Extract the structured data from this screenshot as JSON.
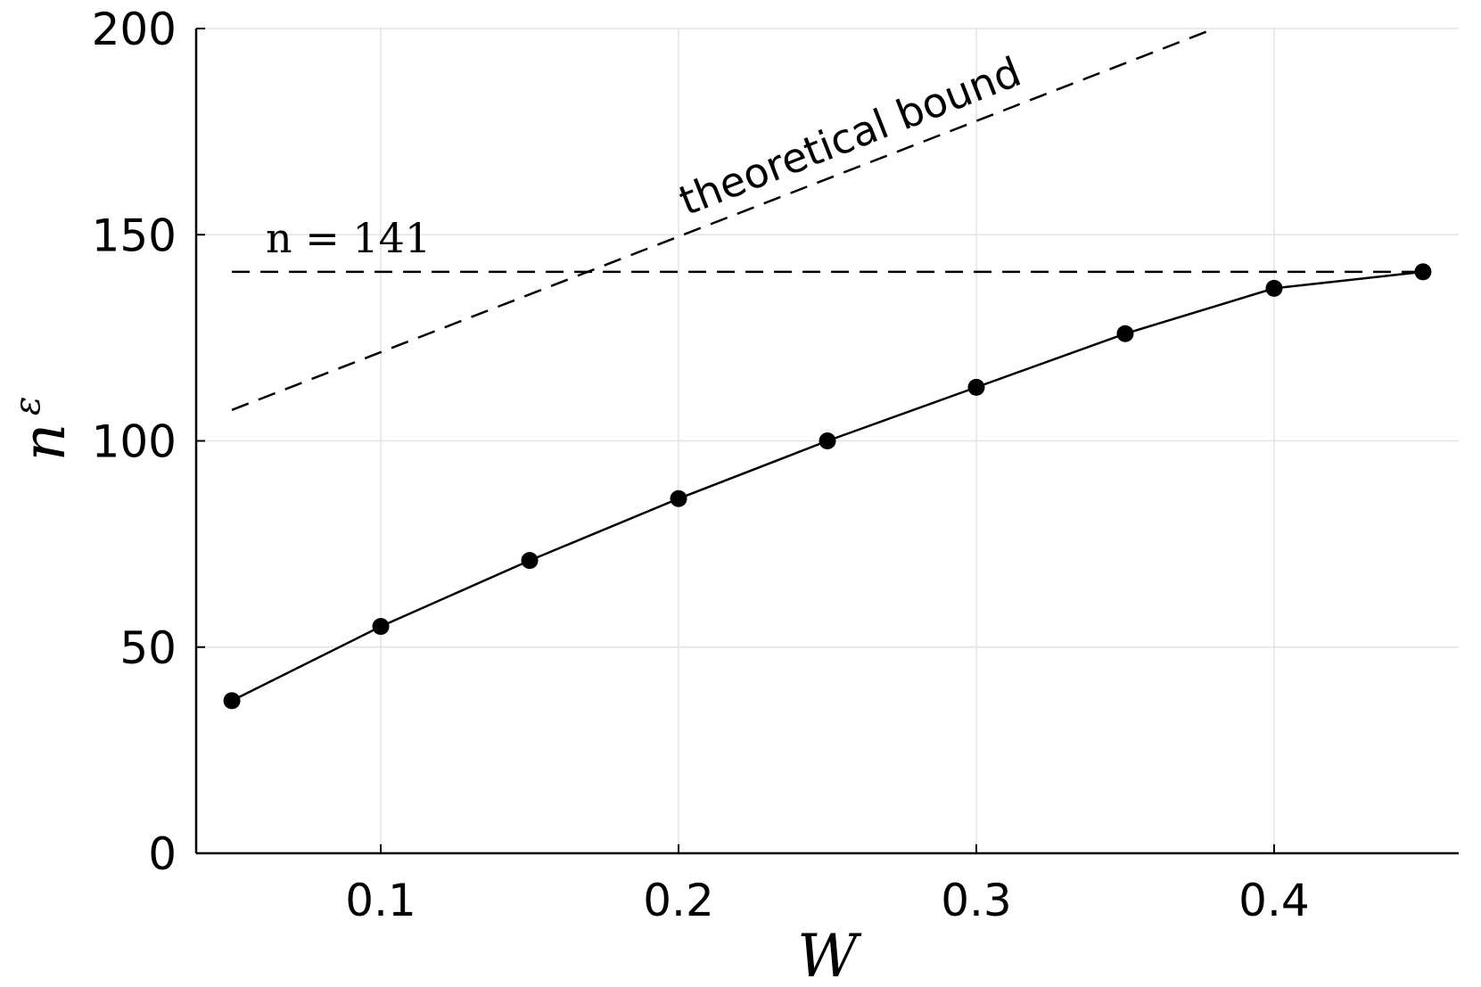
{
  "chart_data": {
    "type": "line",
    "xlabel": "W",
    "ylabel": "n",
    "ylabel_superscript": "ε",
    "xlim": [
      0.038,
      0.462
    ],
    "ylim": [
      0,
      200
    ],
    "x_ticks": [
      0.1,
      0.2,
      0.3,
      0.4
    ],
    "x_tick_labels": [
      "0.1",
      "0.2",
      "0.3",
      "0.4"
    ],
    "y_ticks": [
      0,
      50,
      100,
      150,
      200
    ],
    "y_tick_labels": [
      "0",
      "50",
      "100",
      "150",
      "200"
    ],
    "grid": true,
    "series": [
      {
        "style": "solid-with-markers",
        "x": [
          0.05,
          0.1,
          0.15,
          0.2,
          0.25,
          0.3,
          0.35,
          0.4,
          0.45
        ],
        "y": [
          37,
          55,
          71,
          86,
          100,
          113,
          126,
          137,
          141
        ]
      }
    ],
    "reference_lines": [
      {
        "style": "dashed",
        "label": "n = 141",
        "x": [
          0.05,
          0.45
        ],
        "y": [
          141,
          141
        ]
      },
      {
        "style": "dashed",
        "label": "theoretical bound",
        "x": [
          0.05,
          0.38
        ],
        "y": [
          107.5,
          200
        ]
      }
    ]
  }
}
